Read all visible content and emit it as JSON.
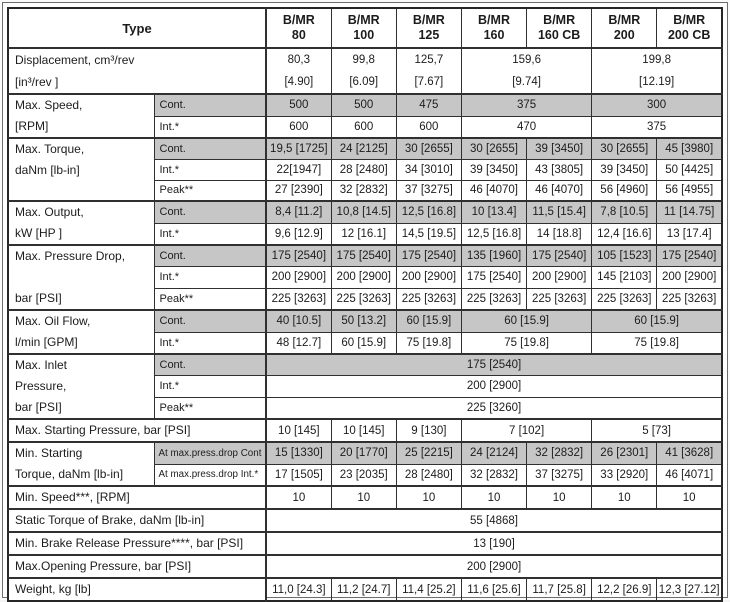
{
  "title": "B/MR hydraulic motor specification table",
  "colors": {
    "shaded_row": "#c6c6c6",
    "border": "#303030",
    "background": "#ffffff"
  },
  "table": {
    "header": {
      "type_label": "Type",
      "columns": [
        {
          "line1": "B/MR",
          "line2": "80"
        },
        {
          "line1": "B/MR",
          "line2": "100"
        },
        {
          "line1": "B/MR",
          "line2": "125"
        },
        {
          "line1": "B/MR",
          "line2": "160"
        },
        {
          "line1": "B/MR",
          "line2": "160 CB"
        },
        {
          "line1": "B/MR",
          "line2": "200"
        },
        {
          "line1": "B/MR",
          "line2": "200 CB"
        }
      ]
    },
    "rows": [
      {
        "name": "displacement",
        "group_start": true,
        "tall": true,
        "label": {
          "lines": [
            "Displacement, cm³/rev",
            "[in³/rev ]"
          ],
          "colspan": 2
        },
        "cells": [
          {
            "text": "80,3",
            "text2": "[4.90]"
          },
          {
            "text": "99,8",
            "text2": "[6.09]"
          },
          {
            "text": "125,7",
            "text2": "[7.67]"
          },
          {
            "text": "159,6",
            "text2": "[9.74]",
            "span": 2
          },
          {
            "text": "199,8",
            "text2": "[12.19]",
            "span": 2
          }
        ]
      },
      {
        "name": "max-speed-cont",
        "group_start": true,
        "shaded": true,
        "label": {
          "lines": [
            "Max. Speed,",
            "[RPM]"
          ],
          "rowspan": 2
        },
        "sub": "Cont.",
        "cells": [
          {
            "text": "500"
          },
          {
            "text": "500"
          },
          {
            "text": "475"
          },
          {
            "text": "375",
            "span": 2
          },
          {
            "text": "300",
            "span": 2
          }
        ]
      },
      {
        "name": "max-speed-int",
        "sub": "Int.*",
        "cells": [
          {
            "text": "600"
          },
          {
            "text": "600"
          },
          {
            "text": "600"
          },
          {
            "text": "470",
            "span": 2
          },
          {
            "text": "375",
            "span": 2
          }
        ]
      },
      {
        "name": "max-torque-cont",
        "group_start": true,
        "shaded": true,
        "label": {
          "lines": [
            "Max. Torque,",
            "daNm [lb-in]"
          ],
          "rowspan": 3
        },
        "sub": "Cont.",
        "cells": [
          {
            "text": "19,5 [1725]"
          },
          {
            "text": "24 [2125]"
          },
          {
            "text": "30 [2655]"
          },
          {
            "text": "30 [2655]"
          },
          {
            "text": "39 [3450]"
          },
          {
            "text": "30 [2655]"
          },
          {
            "text": "45 [3980]"
          }
        ]
      },
      {
        "name": "max-torque-int",
        "sub": "Int.*",
        "cells": [
          {
            "text": "22[1947]"
          },
          {
            "text": "28 [2480]"
          },
          {
            "text": "34 [3010]"
          },
          {
            "text": "39 [3450]"
          },
          {
            "text": "43 [3805]"
          },
          {
            "text": "39 [3450]"
          },
          {
            "text": "50 [4425]"
          }
        ]
      },
      {
        "name": "max-torque-peak",
        "sub": "Peak**",
        "cells": [
          {
            "text": "27 [2390]"
          },
          {
            "text": "32 [2832]"
          },
          {
            "text": "37 [3275]"
          },
          {
            "text": "46 [4070]"
          },
          {
            "text": "46 [4070]"
          },
          {
            "text": "56 [4960]"
          },
          {
            "text": "56 [4955]"
          }
        ]
      },
      {
        "name": "max-output-cont",
        "group_start": true,
        "shaded": true,
        "label": {
          "lines": [
            "Max. Output,",
            "kW [HP ]"
          ],
          "rowspan": 2
        },
        "sub": "Cont.",
        "cells": [
          {
            "text": "8,4 [11.2]"
          },
          {
            "text": "10,8 [14.5]"
          },
          {
            "text": "12,5 [16.8]"
          },
          {
            "text": "10 [13.4]"
          },
          {
            "text": "11,5 [15.4]"
          },
          {
            "text": "7,8 [10.5]"
          },
          {
            "text": "11 [14.75]"
          }
        ]
      },
      {
        "name": "max-output-int",
        "sub": "Int.*",
        "cells": [
          {
            "text": "9,6 [12.9]"
          },
          {
            "text": "12 [16.1]"
          },
          {
            "text": "14,5 [19.5]"
          },
          {
            "text": "12,5 [16.8]"
          },
          {
            "text": "14 [18.8]"
          },
          {
            "text": "12,4 [16.6]"
          },
          {
            "text": "13 [17.4]"
          }
        ]
      },
      {
        "name": "max-pressure-drop-cont",
        "group_start": true,
        "shaded": true,
        "label": {
          "lines": [
            "Max. Pressure Drop,",
            "",
            "bar [PSI]"
          ],
          "rowspan": 3
        },
        "sub": "Cont.",
        "cells": [
          {
            "text": "175 [2540]"
          },
          {
            "text": "175 [2540]"
          },
          {
            "text": "175 [2540]"
          },
          {
            "text": "135 [1960]"
          },
          {
            "text": "175 [2540]"
          },
          {
            "text": "105 [1523]"
          },
          {
            "text": "175 [2540]"
          }
        ]
      },
      {
        "name": "max-pressure-drop-int",
        "sub": "Int.*",
        "cells": [
          {
            "text": "200 [2900]"
          },
          {
            "text": "200 [2900]"
          },
          {
            "text": "200 [2900]"
          },
          {
            "text": "175 [2540]"
          },
          {
            "text": "200 [2900]"
          },
          {
            "text": "145 [2103]"
          },
          {
            "text": "200 [2900]"
          }
        ]
      },
      {
        "name": "max-pressure-drop-peak",
        "sub": "Peak**",
        "cells": [
          {
            "text": "225 [3263]"
          },
          {
            "text": "225 [3263]"
          },
          {
            "text": "225 [3263]"
          },
          {
            "text": "225 [3263]"
          },
          {
            "text": "225 [3263]"
          },
          {
            "text": "225 [3263]"
          },
          {
            "text": "225 [3263]"
          }
        ]
      },
      {
        "name": "max-oil-flow-cont",
        "group_start": true,
        "shaded": true,
        "label": {
          "lines": [
            "Max. Oil Flow,",
            "l/min [GPM]"
          ],
          "rowspan": 2
        },
        "sub": "Cont.",
        "cells": [
          {
            "text": "40 [10.5]"
          },
          {
            "text": "50 [13.2]"
          },
          {
            "text": "60 [15.9]"
          },
          {
            "text": "60 [15.9]",
            "span": 2
          },
          {
            "text": "60 [15.9]",
            "span": 2
          }
        ]
      },
      {
        "name": "max-oil-flow-int",
        "sub": "Int.*",
        "cells": [
          {
            "text": "48 [12.7]"
          },
          {
            "text": "60 [15.9]"
          },
          {
            "text": "75 [19.8]"
          },
          {
            "text": "75 [19.8]",
            "span": 2
          },
          {
            "text": "75 [19.8]",
            "span": 2
          }
        ]
      },
      {
        "name": "max-inlet-pressure-cont",
        "group_start": true,
        "shaded": true,
        "label": {
          "lines": [
            "Max. Inlet",
            "Pressure,",
            "bar [PSI]"
          ],
          "rowspan": 3
        },
        "sub": "Cont.",
        "cells": [
          {
            "text": "175 [2540]",
            "span": 7
          }
        ]
      },
      {
        "name": "max-inlet-pressure-int",
        "sub": "Int.*",
        "cells": [
          {
            "text": "200 [2900]",
            "span": 7
          }
        ]
      },
      {
        "name": "max-inlet-pressure-peak",
        "sub": "Peak**",
        "cells": [
          {
            "text": "225 [3260]",
            "span": 7
          }
        ]
      },
      {
        "name": "max-starting-pressure",
        "group_start": true,
        "label": {
          "lines": [
            "Max. Starting Pressure, bar [PSI]"
          ],
          "colspan": 2
        },
        "cells": [
          {
            "text": "10 [145]"
          },
          {
            "text": "10 [145]"
          },
          {
            "text": "9 [130]"
          },
          {
            "text": "7 [102]",
            "span": 2
          },
          {
            "text": "5 [73]",
            "span": 2
          }
        ]
      },
      {
        "name": "min-starting-torque-cont",
        "group_start": true,
        "shaded": true,
        "label": {
          "lines": [
            "Min. Starting",
            "Torque, daNm [lb-in]"
          ],
          "rowspan": 2
        },
        "sub": "At max.press.drop Cont",
        "sub_small": true,
        "cells": [
          {
            "text": "15 [1330]"
          },
          {
            "text": "20 [1770]"
          },
          {
            "text": "25 [2215]"
          },
          {
            "text": "24 [2124]"
          },
          {
            "text": "32 [2832]"
          },
          {
            "text": "26 [2301]"
          },
          {
            "text": "41 [3628]"
          }
        ]
      },
      {
        "name": "min-starting-torque-int",
        "sub": "At max.press.drop Int.*",
        "sub_small": true,
        "cells": [
          {
            "text": "17 [1505]"
          },
          {
            "text": "23 [2035]"
          },
          {
            "text": "28 [2480]"
          },
          {
            "text": "32 [2832]"
          },
          {
            "text": "37 [3275]"
          },
          {
            "text": "33 [2920]"
          },
          {
            "text": "46 [4071]"
          }
        ]
      },
      {
        "name": "min-speed",
        "group_start": true,
        "label": {
          "lines": [
            "Min. Speed***, [RPM]"
          ],
          "colspan": 2
        },
        "cells": [
          {
            "text": "10"
          },
          {
            "text": "10"
          },
          {
            "text": "10"
          },
          {
            "text": "10"
          },
          {
            "text": "10"
          },
          {
            "text": "10"
          },
          {
            "text": "10"
          }
        ]
      },
      {
        "name": "static-torque-of-brake",
        "group_start": true,
        "label": {
          "lines": [
            "Static Torque of Brake, daNm [lb-in]"
          ],
          "colspan": 2
        },
        "cells": [
          {
            "text": "55 [4868]",
            "span": 7
          }
        ]
      },
      {
        "name": "min-brake-release-pressure",
        "group_start": true,
        "label": {
          "lines": [
            "Min. Brake Release Pressure****, bar [PSI]"
          ],
          "colspan": 2
        },
        "cells": [
          {
            "text": "13 [190]",
            "span": 7
          }
        ]
      },
      {
        "name": "max-opening-pressure",
        "group_start": true,
        "label": {
          "lines": [
            "Max.Opening Pressure, bar [PSI]"
          ],
          "colspan": 2
        },
        "cells": [
          {
            "text": "200 [2900]",
            "span": 7
          }
        ]
      },
      {
        "name": "weight",
        "group_start": true,
        "label": {
          "lines": [
            "Weight, kg [lb]"
          ],
          "colspan": 2
        },
        "cells": [
          {
            "text": "11,0 [24.3]"
          },
          {
            "text": "11,2 [24.7]"
          },
          {
            "text": "11,4 [25.2]"
          },
          {
            "text": "11,6 [25.6]"
          },
          {
            "text": "11,7 [25.8]"
          },
          {
            "text": "12,2 [26.9]"
          },
          {
            "text": "12,3 [27.12]"
          }
        ]
      }
    ]
  }
}
